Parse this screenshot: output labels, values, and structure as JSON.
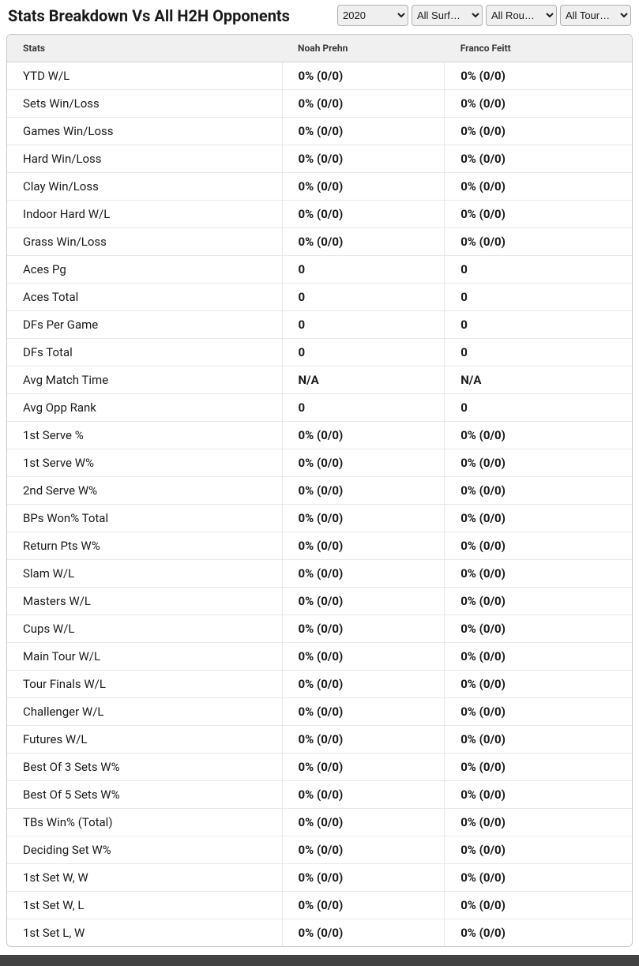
{
  "header": {
    "title": "Stats Breakdown Vs All H2H Opponents"
  },
  "filters": {
    "year": {
      "selected": "2020",
      "options": [
        "2020"
      ]
    },
    "surface": {
      "selected": "All Surf…",
      "options": [
        "All Surf…"
      ]
    },
    "round": {
      "selected": "All Rou…",
      "options": [
        "All Rou…"
      ]
    },
    "tour": {
      "selected": "All Tour…",
      "options": [
        "All Tour…"
      ]
    }
  },
  "table": {
    "columns": [
      "Stats",
      "Noah Prehn",
      "Franco Feitt"
    ],
    "rows": [
      {
        "stat": "YTD W/L",
        "p1": "0% (0/0)",
        "p2": "0% (0/0)"
      },
      {
        "stat": "Sets Win/Loss",
        "p1": "0% (0/0)",
        "p2": "0% (0/0)"
      },
      {
        "stat": "Games Win/Loss",
        "p1": "0% (0/0)",
        "p2": "0% (0/0)"
      },
      {
        "stat": "Hard Win/Loss",
        "p1": "0% (0/0)",
        "p2": "0% (0/0)"
      },
      {
        "stat": "Clay Win/Loss",
        "p1": "0% (0/0)",
        "p2": "0% (0/0)"
      },
      {
        "stat": "Indoor Hard W/L",
        "p1": "0% (0/0)",
        "p2": "0% (0/0)"
      },
      {
        "stat": "Grass Win/Loss",
        "p1": "0% (0/0)",
        "p2": "0% (0/0)"
      },
      {
        "stat": "Aces Pg",
        "p1": "0",
        "p2": "0"
      },
      {
        "stat": "Aces Total",
        "p1": "0",
        "p2": "0"
      },
      {
        "stat": "DFs Per Game",
        "p1": "0",
        "p2": "0"
      },
      {
        "stat": "DFs Total",
        "p1": "0",
        "p2": "0"
      },
      {
        "stat": "Avg Match Time",
        "p1": "N/A",
        "p2": "N/A"
      },
      {
        "stat": "Avg Opp Rank",
        "p1": "0",
        "p2": "0"
      },
      {
        "stat": "1st Serve %",
        "p1": "0% (0/0)",
        "p2": "0% (0/0)"
      },
      {
        "stat": "1st Serve W%",
        "p1": "0% (0/0)",
        "p2": "0% (0/0)"
      },
      {
        "stat": "2nd Serve W%",
        "p1": "0% (0/0)",
        "p2": "0% (0/0)"
      },
      {
        "stat": "BPs Won% Total",
        "p1": "0% (0/0)",
        "p2": "0% (0/0)"
      },
      {
        "stat": "Return Pts W%",
        "p1": "0% (0/0)",
        "p2": "0% (0/0)"
      },
      {
        "stat": "Slam W/L",
        "p1": "0% (0/0)",
        "p2": "0% (0/0)"
      },
      {
        "stat": "Masters W/L",
        "p1": "0% (0/0)",
        "p2": "0% (0/0)"
      },
      {
        "stat": "Cups W/L",
        "p1": "0% (0/0)",
        "p2": "0% (0/0)"
      },
      {
        "stat": "Main Tour W/L",
        "p1": "0% (0/0)",
        "p2": "0% (0/0)"
      },
      {
        "stat": "Tour Finals W/L",
        "p1": "0% (0/0)",
        "p2": "0% (0/0)"
      },
      {
        "stat": "Challenger W/L",
        "p1": "0% (0/0)",
        "p2": "0% (0/0)"
      },
      {
        "stat": "Futures W/L",
        "p1": "0% (0/0)",
        "p2": "0% (0/0)"
      },
      {
        "stat": "Best Of 3 Sets W%",
        "p1": "0% (0/0)",
        "p2": "0% (0/0)"
      },
      {
        "stat": "Best Of 5 Sets W%",
        "p1": "0% (0/0)",
        "p2": "0% (0/0)"
      },
      {
        "stat": "TBs Win% (Total)",
        "p1": "0% (0/0)",
        "p2": "0% (0/0)"
      },
      {
        "stat": "Deciding Set W%",
        "p1": "0% (0/0)",
        "p2": "0% (0/0)"
      },
      {
        "stat": "1st Set W, W",
        "p1": "0% (0/0)",
        "p2": "0% (0/0)"
      },
      {
        "stat": "1st Set W, L",
        "p1": "0% (0/0)",
        "p2": "0% (0/0)"
      },
      {
        "stat": "1st Set L, W",
        "p1": "0% (0/0)",
        "p2": "0% (0/0)"
      }
    ]
  },
  "colors": {
    "page_bg": "#ffffff",
    "header_bg": "#f0f0f0",
    "border": "#d0d0d0",
    "row_border": "#e8e8e8",
    "text": "#1a1a1a",
    "footer_strip": "#424242"
  }
}
